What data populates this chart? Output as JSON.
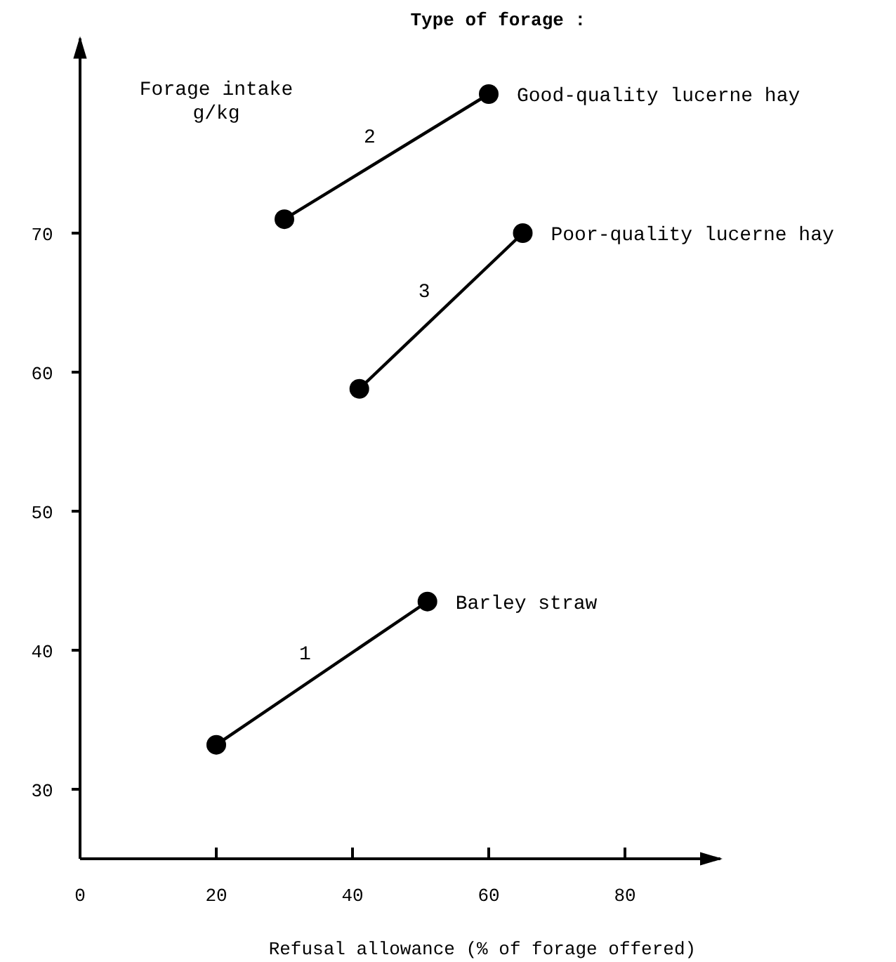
{
  "chart_data": {
    "type": "line",
    "xlabel": "Refusal allowance (% of forage offered)",
    "ylabel": "Forage intake\ng/kg",
    "legend_title": "Type of forage :",
    "xlim": [
      0,
      94
    ],
    "xticks": [
      0,
      20,
      40,
      60,
      80
    ],
    "ylim": [
      25,
      84
    ],
    "yticks": [
      30,
      40,
      50,
      60,
      70
    ],
    "grid": false,
    "marker": "circle",
    "line_style": "solid",
    "series": [
      {
        "name": "Good-quality lucerne hay",
        "color": "#000000",
        "x": [
          30,
          60
        ],
        "values": [
          71,
          80
        ]
      },
      {
        "name": "Poor-quality lucerne hay",
        "color": "#000000",
        "x": [
          41,
          65
        ],
        "values": [
          58.8,
          70
        ]
      },
      {
        "name": "Barley straw",
        "color": "#000000",
        "x": [
          20,
          51
        ],
        "values": [
          33.2,
          43.5
        ]
      }
    ],
    "annotations": [
      "2",
      "3",
      "1"
    ]
  }
}
